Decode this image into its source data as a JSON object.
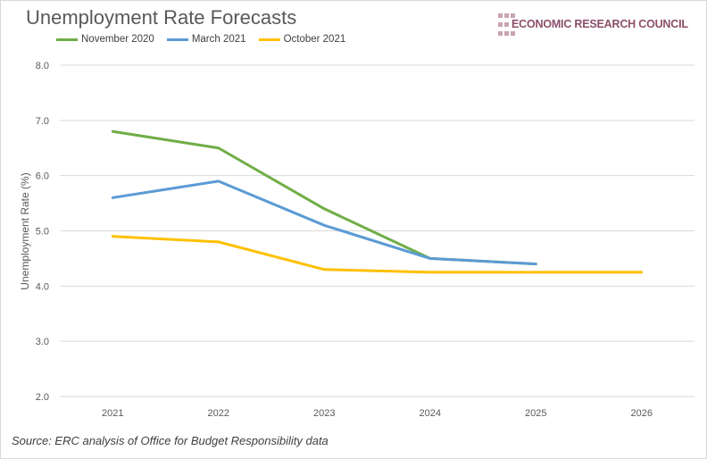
{
  "chart_data": {
    "type": "line",
    "title": "Unemployment Rate Forecasts",
    "ylabel": "Unemployment Rate (%)",
    "xlabel": "",
    "categories": [
      "2021",
      "2022",
      "2023",
      "2024",
      "2025",
      "2026"
    ],
    "ylim": [
      2.0,
      8.0
    ],
    "yticks": [
      "2.0",
      "3.0",
      "4.0",
      "5.0",
      "6.0",
      "7.0",
      "8.0"
    ],
    "grid": true,
    "legend_position": "top-left",
    "series": [
      {
        "name": "November 2020",
        "color": "#70ad47",
        "values": [
          6.8,
          6.5,
          5.4,
          4.5,
          4.4,
          null
        ]
      },
      {
        "name": "March 2021",
        "color": "#5b9bd5",
        "values": [
          5.6,
          5.9,
          5.1,
          4.5,
          4.4,
          null
        ]
      },
      {
        "name": "October 2021",
        "color": "#ffc000",
        "values": [
          4.9,
          4.8,
          4.3,
          4.25,
          4.25,
          4.25
        ]
      }
    ]
  },
  "logo": {
    "text": "ECONOMIC RESEARCH COUNCIL"
  },
  "source": "Source: ERC analysis of Office for Budget Responsibility data"
}
